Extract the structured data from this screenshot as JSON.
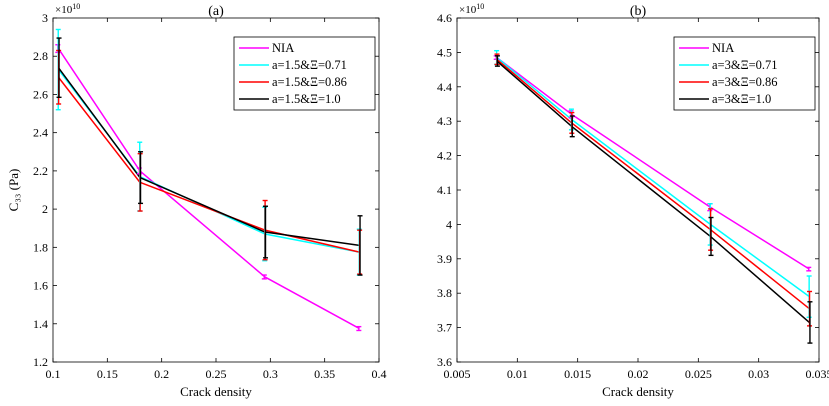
{
  "figure": {
    "panels_count": 2
  },
  "chart_data": [
    {
      "type": "line",
      "title": "(a)",
      "xlabel": "Crack density",
      "ylabel": "C₃₃ (Pa)",
      "exponent_label": "×10",
      "exponent": "10",
      "xlim": [
        0.1,
        0.4
      ],
      "ylim": [
        1.2,
        3.0
      ],
      "xticks": [
        0.1,
        0.15,
        0.2,
        0.25,
        0.3,
        0.35,
        0.4
      ],
      "yticks": [
        1.2,
        1.4,
        1.6,
        1.8,
        2.0,
        2.2,
        2.4,
        2.6,
        2.8,
        3.0
      ],
      "xtick_labels": [
        "0.1",
        "0.15",
        "0.2",
        "0.25",
        "0.3",
        "0.35",
        "0.4"
      ],
      "ytick_labels": [
        "1.2",
        "1.4",
        "1.6",
        "1.8",
        "2",
        "2.2",
        "2.4",
        "2.6",
        "2.8",
        "3"
      ],
      "legend_position": "top-right",
      "x": [
        0.105,
        0.18,
        0.295,
        0.382
      ],
      "series": [
        {
          "name": "NIA",
          "color": "#ff00ff",
          "values": [
            2.84,
            2.2,
            1.645,
            1.375
          ],
          "err": [
            0.02,
            0.015,
            0.01,
            0.01
          ]
        },
        {
          "name": "a=1.5&Ξ=0.71",
          "color": "#00ffff",
          "values": [
            2.73,
            2.17,
            1.87,
            1.775
          ],
          "err": [
            0.21,
            0.18,
            0.14,
            0.12
          ]
        },
        {
          "name": "a=1.5&Ξ=0.86",
          "color": "#ff0000",
          "values": [
            2.69,
            2.14,
            1.89,
            1.775
          ],
          "err": [
            0.14,
            0.15,
            0.155,
            0.115
          ]
        },
        {
          "name": "a=1.5&Ξ=1.0",
          "color": "#000000",
          "values": [
            2.74,
            2.165,
            1.88,
            1.81
          ],
          "err": [
            0.155,
            0.135,
            0.135,
            0.155
          ]
        }
      ]
    },
    {
      "type": "line",
      "title": "(b)",
      "xlabel": "Crack density",
      "ylabel": "",
      "exponent_label": "×10",
      "exponent": "10",
      "xlim": [
        0.005,
        0.035
      ],
      "ylim": [
        3.6,
        4.6
      ],
      "xticks": [
        0.005,
        0.01,
        0.015,
        0.02,
        0.025,
        0.03,
        0.035
      ],
      "yticks": [
        3.6,
        3.7,
        3.8,
        3.9,
        4.0,
        4.1,
        4.2,
        4.3,
        4.4,
        4.5,
        4.6
      ],
      "xtick_labels": [
        "0.005",
        "0.01",
        "0.015",
        "0.02",
        "0.025",
        "0.03",
        "0.035"
      ],
      "ytick_labels": [
        "3.6",
        "3.7",
        "3.8",
        "3.9",
        "4",
        "4.1",
        "4.2",
        "4.3",
        "4.4",
        "4.5",
        "4.6"
      ],
      "legend_position": "top-right",
      "x": [
        0.0083,
        0.0145,
        0.026,
        0.0342
      ],
      "series": [
        {
          "name": "NIA",
          "color": "#ff00ff",
          "values": [
            4.485,
            4.32,
            4.05,
            3.87
          ],
          "err": [
            0.005,
            0.01,
            0.01,
            0.005
          ]
        },
        {
          "name": "a=3&Ξ=0.71",
          "color": "#00ffff",
          "values": [
            4.485,
            4.305,
            4.0,
            3.79
          ],
          "err": [
            0.02,
            0.03,
            0.06,
            0.06
          ]
        },
        {
          "name": "a=3&Ξ=0.86",
          "color": "#ff0000",
          "values": [
            4.48,
            4.295,
            3.985,
            3.755
          ],
          "err": [
            0.015,
            0.03,
            0.06,
            0.05
          ]
        },
        {
          "name": "a=3&Ξ=1.0",
          "color": "#000000",
          "values": [
            4.475,
            4.285,
            3.965,
            3.715
          ],
          "err": [
            0.015,
            0.03,
            0.055,
            0.06
          ]
        }
      ]
    }
  ]
}
